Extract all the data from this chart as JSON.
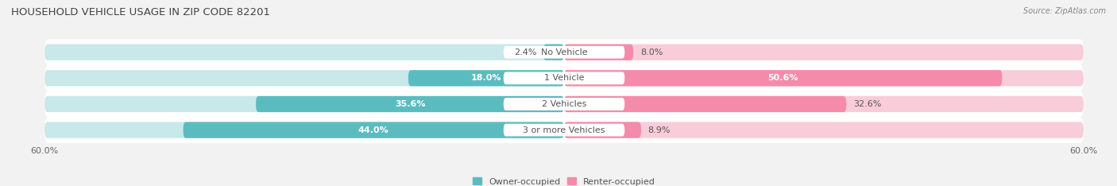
{
  "title": "HOUSEHOLD VEHICLE USAGE IN ZIP CODE 82201",
  "source": "Source: ZipAtlas.com",
  "categories": [
    "No Vehicle",
    "1 Vehicle",
    "2 Vehicles",
    "3 or more Vehicles"
  ],
  "owner_values": [
    2.4,
    18.0,
    35.6,
    44.0
  ],
  "renter_values": [
    8.0,
    50.6,
    32.6,
    8.9
  ],
  "owner_color": "#5bbcbf",
  "renter_color": "#f48baa",
  "owner_color_light": "#c8e8e9",
  "renter_color_light": "#f9ccd9",
  "owner_label": "Owner-occupied",
  "renter_label": "Renter-occupied",
  "xlim": [
    -60,
    60
  ],
  "background_color": "#f2f2f2",
  "row_bg_color": "#e8e8e8",
  "title_fontsize": 9.5,
  "source_fontsize": 7,
  "label_fontsize": 8,
  "value_fontsize": 8,
  "tick_fontsize": 8,
  "legend_fontsize": 8
}
